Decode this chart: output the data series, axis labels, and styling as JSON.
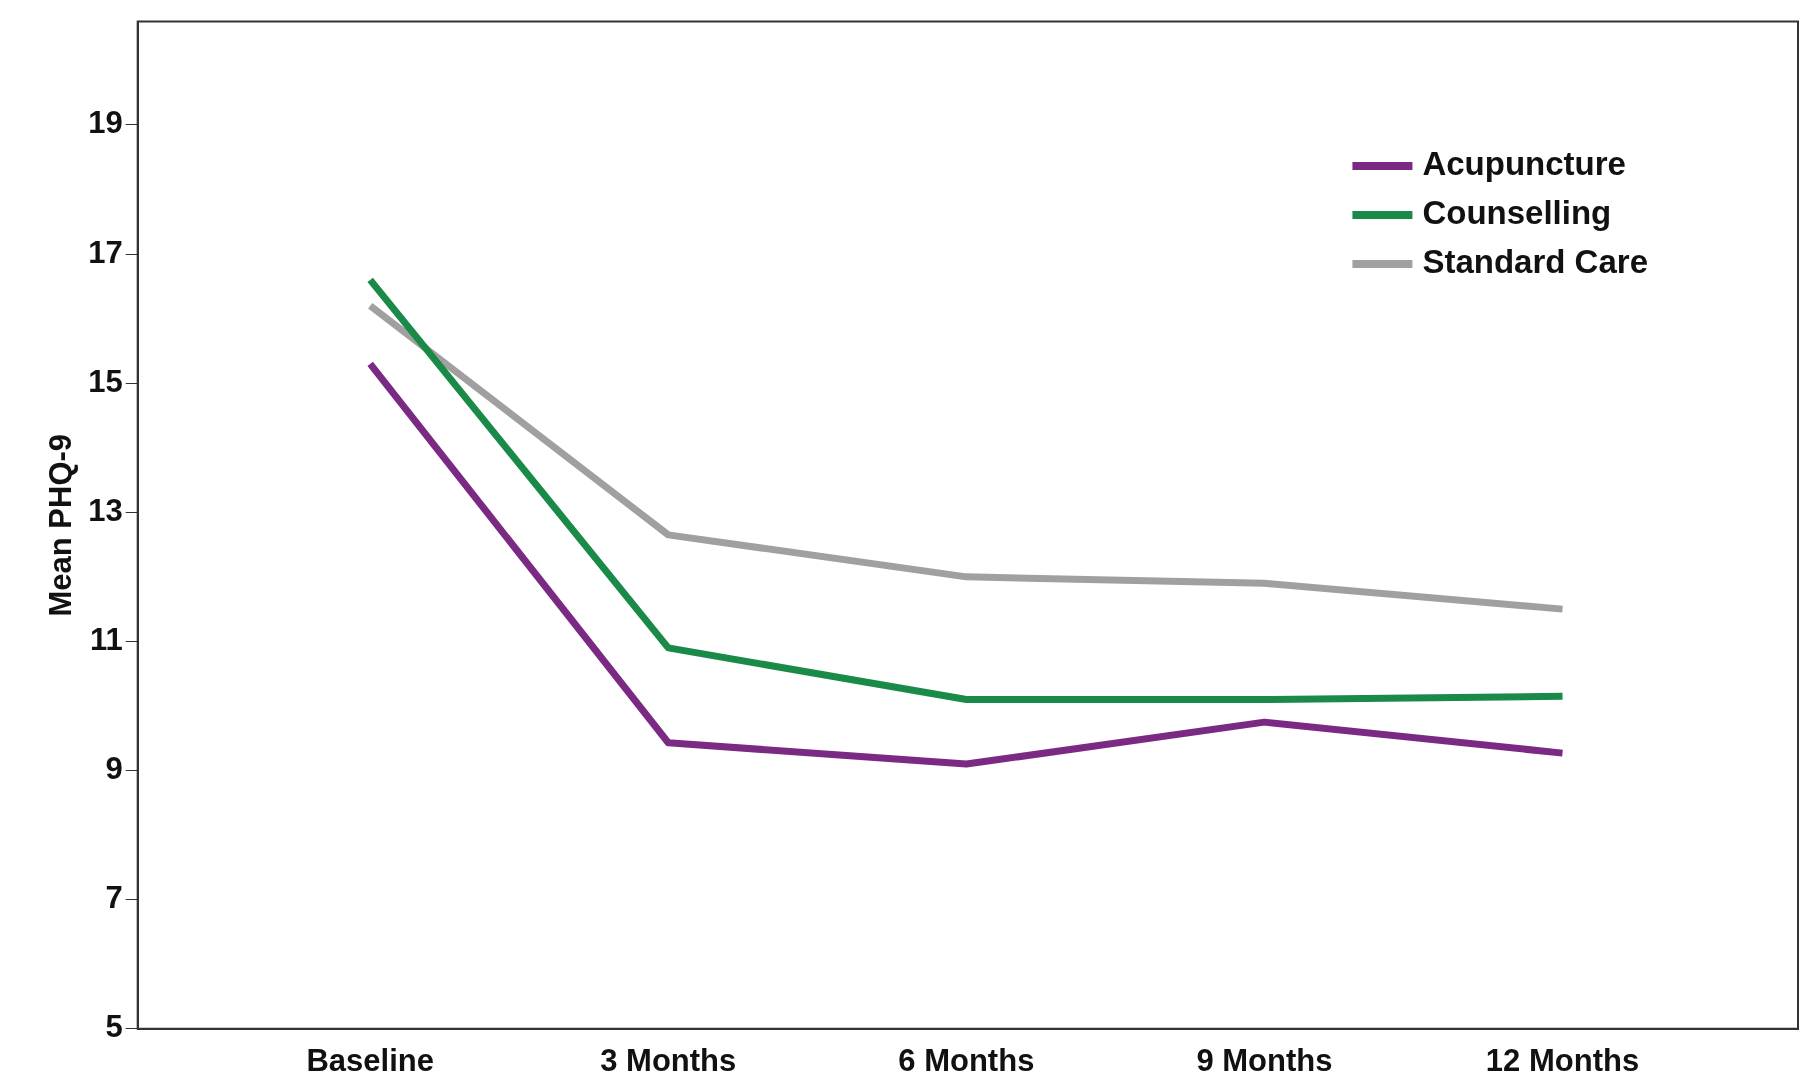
{
  "chart_data": {
    "type": "line",
    "ylabel": "Mean PHQ-9",
    "categories": [
      "Baseline",
      "3 Months",
      "6 Months",
      "9 Months",
      "12 Months"
    ],
    "series": [
      {
        "name": "Acupuncture",
        "color": "#7b2a84",
        "values": [
          15.3,
          9.43,
          9.1,
          9.75,
          9.27
        ]
      },
      {
        "name": "Counselling",
        "color": "#1a8a48",
        "values": [
          16.6,
          10.9,
          10.1,
          10.1,
          10.15
        ]
      },
      {
        "name": "Standard Care",
        "color": "#a0a0a0",
        "values": [
          16.2,
          12.65,
          12.0,
          11.9,
          11.5
        ]
      }
    ],
    "ylim": [
      5,
      20.6
    ],
    "yticks": [
      5,
      7,
      9,
      11,
      13,
      15,
      17,
      19
    ],
    "grid": false,
    "legend": "top right",
    "marker": "none",
    "line_style": "solid"
  }
}
